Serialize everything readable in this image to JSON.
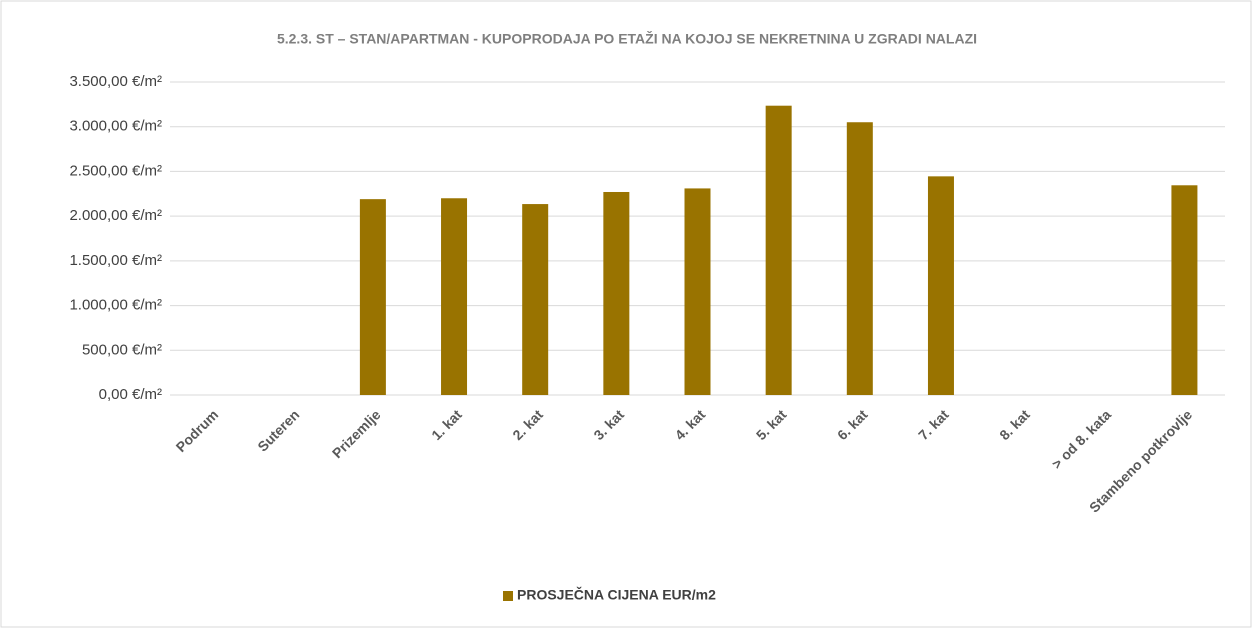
{
  "chart_data": {
    "type": "bar",
    "title": "5.2.3. ST – STAN/APARTMAN - KUPOPRODAJA PO ETAŽI NA KOJOJ SE NEKRETNINA U ZGRADI NALAZI",
    "categories": [
      "Podrum",
      "Suteren",
      "Prizemlje",
      "1. kat",
      "2. kat",
      "3. kat",
      "4. kat",
      "5. kat",
      "6. kat",
      "7. kat",
      "8. kat",
      "> od 8. kata",
      "Stambeno potkrovlje"
    ],
    "series": [
      {
        "name": "PROSJEČNA CIJENA EUR/m2",
        "color": "#997300",
        "values": [
          null,
          null,
          2190,
          2200,
          2135,
          2270,
          2310,
          3235,
          3050,
          2445,
          null,
          null,
          2345
        ]
      }
    ],
    "ylim": [
      0,
      3500
    ],
    "yticks": [
      {
        "value": 0,
        "label": "0,00 €/m²"
      },
      {
        "value": 500,
        "label": "500,00 €/m²"
      },
      {
        "value": 1000,
        "label": "1.000,00 €/m²"
      },
      {
        "value": 1500,
        "label": "1.500,00 €/m²"
      },
      {
        "value": 2000,
        "label": "2.000,00 €/m²"
      },
      {
        "value": 2500,
        "label": "2.500,00 €/m²"
      },
      {
        "value": 3000,
        "label": "3.000,00 €/m²"
      },
      {
        "value": 3500,
        "label": "3.500,00 €/m²"
      }
    ],
    "grid": true,
    "legend": "bottom"
  }
}
